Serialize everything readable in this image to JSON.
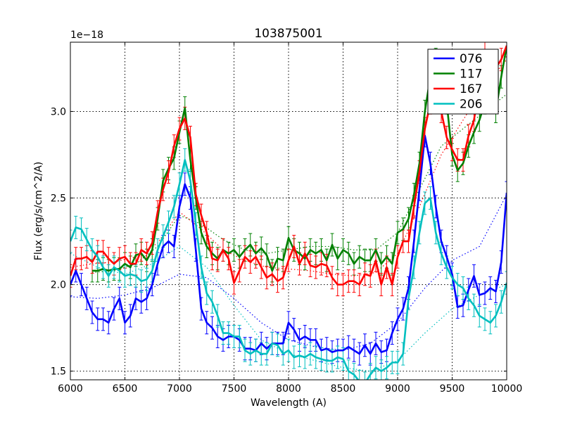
{
  "chart_data": {
    "type": "line",
    "title": "103875001",
    "xlabel": "Wavelength (A)",
    "ylabel": "Flux (erg/s/cm^2/A)",
    "offset_label": "1e−18",
    "xlim": [
      6000,
      10000
    ],
    "ylim": [
      1.45,
      3.4
    ],
    "xticks": [
      6000,
      6500,
      7000,
      7500,
      8000,
      8500,
      9000,
      9500,
      10000
    ],
    "yticks": [
      1.5,
      2.0,
      2.5,
      3.0
    ],
    "ytick_labels": [
      "1.5",
      "2.0",
      "2.5",
      "3.0"
    ],
    "grid": true,
    "legend_position": "top-right",
    "series": [
      {
        "name": "076",
        "color": "#0000ff",
        "x": [
          6000,
          6050,
          6100,
          6150,
          6200,
          6250,
          6300,
          6350,
          6400,
          6450,
          6500,
          6550,
          6600,
          6650,
          6700,
          6750,
          6800,
          6850,
          6900,
          6950,
          7000,
          7050,
          7100,
          7150,
          7200,
          7250,
          7300,
          7350,
          7400,
          7450,
          7500,
          7550,
          7600,
          7650,
          7700,
          7750,
          7800,
          7850,
          7900,
          7950,
          8000,
          8050,
          8100,
          8150,
          8200,
          8250,
          8300,
          8350,
          8400,
          8450,
          8500,
          8550,
          8600,
          8650,
          8700,
          8750,
          8800,
          8850,
          8900,
          8950,
          9000,
          9050,
          9100,
          9150,
          9200,
          9250,
          9300,
          9350,
          9400,
          9450,
          9500,
          9550,
          9600,
          9650,
          9700,
          9750,
          9800,
          9850,
          9900,
          9950,
          10000
        ],
        "y": [
          2.0,
          2.08,
          2.0,
          1.92,
          1.84,
          1.8,
          1.8,
          1.78,
          1.86,
          1.92,
          1.78,
          1.82,
          1.92,
          1.9,
          1.92,
          2.0,
          2.12,
          2.22,
          2.25,
          2.22,
          2.45,
          2.58,
          2.5,
          2.2,
          1.86,
          1.78,
          1.75,
          1.7,
          1.68,
          1.7,
          1.7,
          1.68,
          1.63,
          1.63,
          1.62,
          1.66,
          1.63,
          1.66,
          1.66,
          1.66,
          1.78,
          1.74,
          1.68,
          1.7,
          1.68,
          1.68,
          1.62,
          1.63,
          1.61,
          1.62,
          1.62,
          1.64,
          1.62,
          1.6,
          1.65,
          1.6,
          1.66,
          1.61,
          1.62,
          1.72,
          1.8,
          1.86,
          1.98,
          2.25,
          2.55,
          2.86,
          2.7,
          2.45,
          2.25,
          2.16,
          2.06,
          1.87,
          1.88,
          1.97,
          2.05,
          1.94,
          1.95,
          1.98,
          1.96,
          2.13,
          2.53
        ],
        "smooth_x": [
          6000,
          6250,
          6500,
          6750,
          7000,
          7250,
          7500,
          7750,
          8000,
          8250,
          8500,
          8750,
          9000,
          9250,
          9500,
          9750,
          10000
        ],
        "smooth_y": [
          1.93,
          1.92,
          1.94,
          1.98,
          2.06,
          2.04,
          1.92,
          1.78,
          1.68,
          1.64,
          1.62,
          1.66,
          1.78,
          1.98,
          2.14,
          2.22,
          2.52
        ]
      },
      {
        "name": "117",
        "color": "#008000",
        "x": [
          6200,
          6250,
          6300,
          6350,
          6400,
          6450,
          6500,
          6550,
          6600,
          6650,
          6700,
          6750,
          6800,
          6850,
          6900,
          6950,
          7000,
          7050,
          7100,
          7150,
          7200,
          7250,
          7300,
          7350,
          7400,
          7450,
          7500,
          7550,
          7600,
          7650,
          7700,
          7750,
          7800,
          7850,
          7900,
          7950,
          8000,
          8050,
          8100,
          8150,
          8200,
          8250,
          8300,
          8350,
          8400,
          8450,
          8500,
          8550,
          8600,
          8650,
          8700,
          8750,
          8800,
          8850,
          8900,
          8950,
          9000,
          9050,
          9100,
          9150,
          9200,
          9250,
          9300,
          9350,
          9400,
          9450,
          9500,
          9550,
          9600,
          9650,
          9700,
          9750,
          9800,
          9850,
          9900,
          9950,
          10000
        ],
        "y": [
          2.08,
          2.08,
          2.09,
          2.08,
          2.09,
          2.09,
          2.12,
          2.1,
          2.17,
          2.18,
          2.14,
          2.2,
          2.38,
          2.6,
          2.67,
          2.73,
          2.88,
          3.02,
          2.72,
          2.5,
          2.3,
          2.22,
          2.18,
          2.15,
          2.2,
          2.18,
          2.2,
          2.16,
          2.2,
          2.23,
          2.18,
          2.21,
          2.17,
          2.08,
          2.15,
          2.14,
          2.27,
          2.2,
          2.18,
          2.15,
          2.2,
          2.18,
          2.2,
          2.14,
          2.23,
          2.15,
          2.2,
          2.18,
          2.12,
          2.16,
          2.14,
          2.14,
          2.2,
          2.12,
          2.16,
          2.12,
          2.3,
          2.32,
          2.38,
          2.52,
          2.7,
          3.0,
          3.2,
          3.3,
          3.1,
          3.05,
          2.75,
          2.66,
          2.7,
          2.8,
          2.88,
          2.95,
          3.05,
          3.2,
          3.0,
          3.2,
          3.38
        ],
        "smooth_x": [
          6200,
          6400,
          6600,
          6800,
          7000,
          7200,
          7400,
          7600,
          7800,
          8000,
          8200,
          8400,
          8600,
          8800,
          9000,
          9200,
          9400,
          9600,
          9800,
          10000
        ],
        "smooth_y": [
          2.07,
          2.08,
          2.12,
          2.22,
          2.4,
          2.35,
          2.26,
          2.2,
          2.18,
          2.2,
          2.22,
          2.22,
          2.2,
          2.2,
          2.3,
          2.55,
          2.8,
          2.9,
          3.0,
          3.1
        ]
      },
      {
        "name": "167",
        "color": "#ff0000",
        "x": [
          6000,
          6050,
          6100,
          6150,
          6200,
          6250,
          6300,
          6350,
          6400,
          6450,
          6500,
          6550,
          6600,
          6650,
          6700,
          6750,
          6800,
          6850,
          6900,
          6950,
          7000,
          7050,
          7100,
          7150,
          7200,
          7250,
          7300,
          7350,
          7400,
          7450,
          7500,
          7550,
          7600,
          7650,
          7700,
          7750,
          7800,
          7850,
          7900,
          7950,
          8000,
          8050,
          8100,
          8150,
          8200,
          8250,
          8300,
          8350,
          8400,
          8450,
          8500,
          8550,
          8600,
          8650,
          8700,
          8750,
          8800,
          8850,
          8900,
          8950,
          9000,
          9050,
          9100,
          9150,
          9200,
          9250,
          9300,
          9350,
          9400,
          9450,
          9500,
          9550,
          9600,
          9650,
          9700,
          9750,
          9800,
          9850,
          9900,
          9950,
          10000
        ],
        "y": [
          2.05,
          2.15,
          2.15,
          2.16,
          2.13,
          2.19,
          2.19,
          2.15,
          2.12,
          2.15,
          2.16,
          2.12,
          2.12,
          2.2,
          2.18,
          2.24,
          2.42,
          2.55,
          2.65,
          2.8,
          2.9,
          2.96,
          2.85,
          2.52,
          2.4,
          2.3,
          2.15,
          2.14,
          2.2,
          2.15,
          2.01,
          2.08,
          2.16,
          2.13,
          2.16,
          2.1,
          2.04,
          2.06,
          2.02,
          2.04,
          2.14,
          2.22,
          2.12,
          2.18,
          2.11,
          2.1,
          2.12,
          2.11,
          2.04,
          2.0,
          2.0,
          2.02,
          2.02,
          2.0,
          2.06,
          2.05,
          2.14,
          2.0,
          2.1,
          2.0,
          2.16,
          2.25,
          2.25,
          2.45,
          2.65,
          2.9,
          3.05,
          3.2,
          3.0,
          2.85,
          2.78,
          2.72,
          2.72,
          2.86,
          2.95,
          3.15,
          3.35,
          3.2,
          3.25,
          3.3,
          3.38
        ],
        "smooth_x": [
          6000,
          6200,
          6400,
          6600,
          6800,
          7000,
          7200,
          7400,
          7600,
          7800,
          8000,
          8200,
          8400,
          8600,
          8800,
          9000,
          9200,
          9400,
          9600,
          9800,
          10000
        ],
        "smooth_y": [
          2.1,
          2.12,
          2.13,
          2.16,
          2.24,
          2.42,
          2.32,
          2.2,
          2.14,
          2.1,
          2.09,
          2.08,
          2.06,
          2.05,
          2.07,
          2.18,
          2.45,
          2.75,
          2.95,
          3.15,
          3.3
        ]
      },
      {
        "name": "206",
        "color": "#00bfbf",
        "x": [
          6000,
          6050,
          6100,
          6150,
          6200,
          6250,
          6300,
          6350,
          6400,
          6450,
          6500,
          6550,
          6600,
          6650,
          6700,
          6750,
          6800,
          6850,
          6900,
          6950,
          7000,
          7050,
          7100,
          7150,
          7200,
          7250,
          7300,
          7350,
          7400,
          7450,
          7500,
          7550,
          7600,
          7650,
          7700,
          7750,
          7800,
          7850,
          7900,
          7950,
          8000,
          8050,
          8100,
          8150,
          8200,
          8250,
          8300,
          8350,
          8400,
          8450,
          8500,
          8550,
          8600,
          8650,
          8700,
          8750,
          8800,
          8850,
          8900,
          8950,
          9000,
          9050,
          9100,
          9150,
          9200,
          9250,
          9300,
          9350,
          9400,
          9450,
          9500,
          9550,
          9600,
          9650,
          9700,
          9750,
          9800,
          9850,
          9900,
          9950,
          10000
        ],
        "y": [
          2.25,
          2.33,
          2.32,
          2.26,
          2.2,
          2.16,
          2.1,
          2.05,
          2.1,
          2.08,
          2.05,
          2.06,
          2.05,
          2.02,
          2.03,
          2.08,
          2.2,
          2.28,
          2.36,
          2.45,
          2.58,
          2.72,
          2.6,
          2.35,
          2.1,
          1.95,
          1.9,
          1.82,
          1.72,
          1.72,
          1.7,
          1.7,
          1.62,
          1.6,
          1.62,
          1.6,
          1.6,
          1.66,
          1.65,
          1.6,
          1.62,
          1.58,
          1.59,
          1.58,
          1.6,
          1.58,
          1.57,
          1.56,
          1.56,
          1.58,
          1.57,
          1.5,
          1.48,
          1.44,
          1.43,
          1.48,
          1.52,
          1.5,
          1.52,
          1.55,
          1.55,
          1.6,
          1.92,
          2.1,
          2.3,
          2.47,
          2.5,
          2.3,
          2.18,
          2.1,
          2.04,
          2.0,
          1.98,
          1.92,
          1.88,
          1.82,
          1.8,
          1.78,
          1.82,
          1.9,
          2.01
        ],
        "smooth_x": [
          6000,
          6250,
          6500,
          6750,
          7000,
          7250,
          7500,
          7750,
          8000,
          8250,
          8500,
          8750,
          9000,
          9250,
          9500,
          9750,
          10000
        ],
        "smooth_y": [
          2.18,
          2.1,
          2.06,
          2.12,
          2.22,
          2.1,
          1.88,
          1.68,
          1.6,
          1.56,
          1.52,
          1.5,
          1.56,
          1.72,
          1.86,
          1.94,
          2.0
        ]
      }
    ]
  }
}
